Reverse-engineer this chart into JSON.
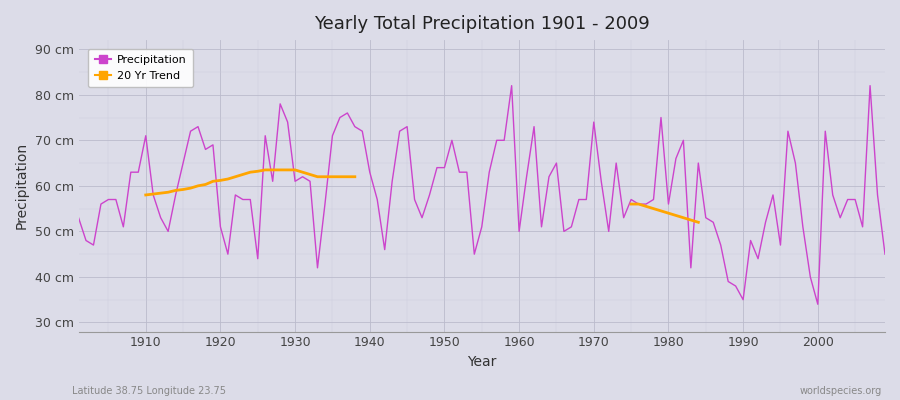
{
  "title": "Yearly Total Precipitation 1901 - 2009",
  "xlabel": "Year",
  "ylabel": "Precipitation",
  "subtitle_left": "Latitude 38.75 Longitude 23.75",
  "subtitle_right": "worldspecies.org",
  "bg_color": "#dcdce8",
  "plot_bg_color": "#dcdce8",
  "precip_color": "#cc44cc",
  "trend_color": "#ffa500",
  "ylim": [
    28,
    92
  ],
  "yticks": [
    30,
    40,
    50,
    60,
    70,
    80,
    90
  ],
  "years": [
    1901,
    1902,
    1903,
    1904,
    1905,
    1906,
    1907,
    1908,
    1909,
    1910,
    1911,
    1912,
    1913,
    1914,
    1915,
    1916,
    1917,
    1918,
    1919,
    1920,
    1921,
    1922,
    1923,
    1924,
    1925,
    1926,
    1927,
    1928,
    1929,
    1930,
    1931,
    1932,
    1933,
    1934,
    1935,
    1936,
    1937,
    1938,
    1939,
    1940,
    1941,
    1942,
    1943,
    1944,
    1945,
    1946,
    1947,
    1948,
    1949,
    1950,
    1951,
    1952,
    1953,
    1954,
    1955,
    1956,
    1957,
    1958,
    1959,
    1960,
    1961,
    1962,
    1963,
    1964,
    1965,
    1966,
    1967,
    1968,
    1969,
    1970,
    1971,
    1972,
    1973,
    1974,
    1975,
    1976,
    1977,
    1978,
    1979,
    1980,
    1981,
    1982,
    1983,
    1984,
    1985,
    1986,
    1987,
    1988,
    1989,
    1990,
    1991,
    1992,
    1993,
    1994,
    1995,
    1996,
    1997,
    1998,
    1999,
    2000,
    2001,
    2002,
    2003,
    2004,
    2005,
    2006,
    2007,
    2008,
    2009
  ],
  "precip": [
    53,
    48,
    47,
    56,
    57,
    57,
    51,
    63,
    63,
    71,
    58,
    53,
    50,
    58,
    65,
    72,
    73,
    68,
    69,
    51,
    45,
    58,
    57,
    57,
    44,
    71,
    61,
    78,
    74,
    61,
    62,
    61,
    42,
    56,
    71,
    75,
    76,
    73,
    72,
    63,
    57,
    46,
    61,
    72,
    73,
    57,
    53,
    58,
    64,
    64,
    70,
    63,
    63,
    45,
    51,
    63,
    70,
    70,
    82,
    50,
    62,
    73,
    51,
    62,
    65,
    50,
    51,
    57,
    57,
    74,
    61,
    50,
    65,
    53,
    57,
    56,
    56,
    57,
    75,
    56,
    66,
    70,
    42,
    65,
    53,
    52,
    47,
    39,
    38,
    35,
    48,
    44,
    52,
    58,
    47,
    72,
    65,
    51,
    40,
    34,
    72,
    58,
    53,
    57,
    57,
    51,
    82,
    58,
    45
  ],
  "trend_seg1_years": [
    1910,
    1911,
    1912,
    1913,
    1914,
    1915,
    1916,
    1917,
    1918,
    1919,
    1920,
    1921,
    1922,
    1923,
    1924,
    1925,
    1926,
    1927,
    1928,
    1929,
    1930,
    1931,
    1932,
    1933,
    1934,
    1935,
    1936,
    1937,
    1938
  ],
  "trend_seg1_values": [
    58,
    58.2,
    58.4,
    58.6,
    59,
    59.2,
    59.5,
    60,
    60.3,
    61,
    61.2,
    61.5,
    62,
    62.5,
    63,
    63.2,
    63.5,
    63.5,
    63.5,
    63.5,
    63.5,
    63,
    62.5,
    62,
    62,
    62,
    62,
    62,
    62
  ],
  "trend_seg2_years": [
    1975,
    1976,
    1977,
    1978,
    1979,
    1980,
    1981,
    1982,
    1983,
    1984
  ],
  "trend_seg2_values": [
    56,
    56,
    55.5,
    55,
    54.5,
    54,
    53.5,
    53,
    52.5,
    52
  ]
}
